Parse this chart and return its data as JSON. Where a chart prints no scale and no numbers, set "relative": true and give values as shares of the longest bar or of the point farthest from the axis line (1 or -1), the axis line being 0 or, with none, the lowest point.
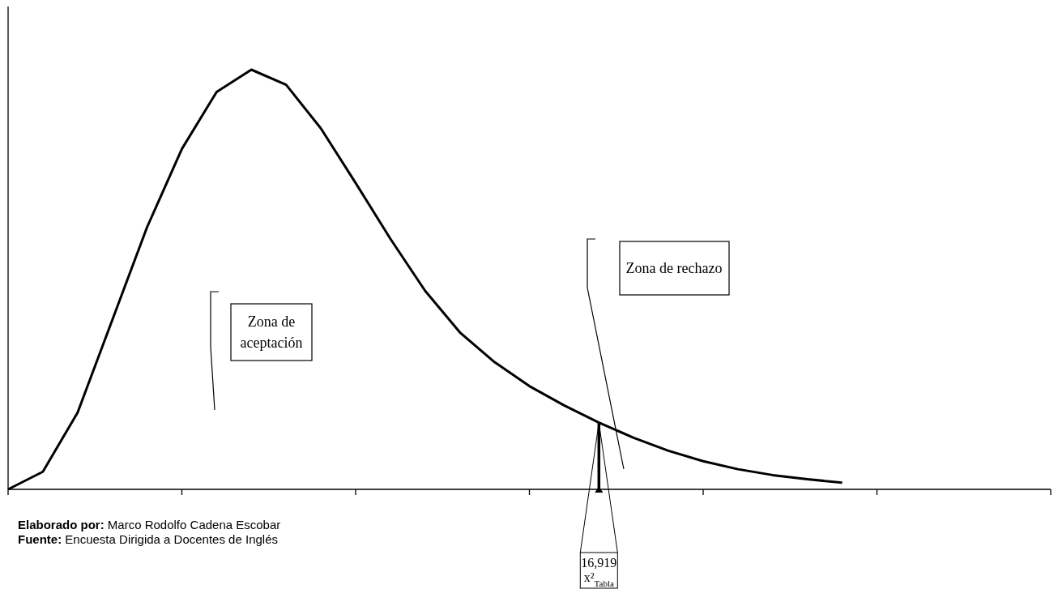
{
  "chart_data": {
    "type": "line",
    "relative": true,
    "color": "#000000",
    "marker": "none",
    "line_style": "solid",
    "grid": false,
    "categories": [
      null,
      null,
      null,
      null,
      null,
      null,
      null,
      null,
      null,
      null,
      null,
      null,
      null,
      null,
      null,
      null,
      null,
      null,
      null,
      null,
      null,
      null,
      null,
      null,
      null,
      null,
      null,
      null,
      null,
      null,
      null
    ],
    "values": [
      0,
      0.042,
      0.183,
      0.404,
      0.625,
      0.811,
      0.947,
      1,
      0.964,
      0.86,
      0.73,
      0.597,
      0.473,
      0.374,
      0.303,
      0.246,
      0.2,
      0.159,
      0.123,
      0.092,
      0.067,
      0.048,
      0.034,
      0.024,
      0.016,
      null,
      null,
      null,
      null,
      null,
      null
    ],
    "annotations": [
      {
        "text": "16,919\nx²$_{Tabla}$",
        "y": 0.159
      },
      "Zona de aceptación",
      "Zona de rechazo",
      "Elaborado por: Marco Rodolfo Cadena Escobar",
      "Fuente: Encuesta Dirigida a Docentes de Inglés"
    ]
  }
}
